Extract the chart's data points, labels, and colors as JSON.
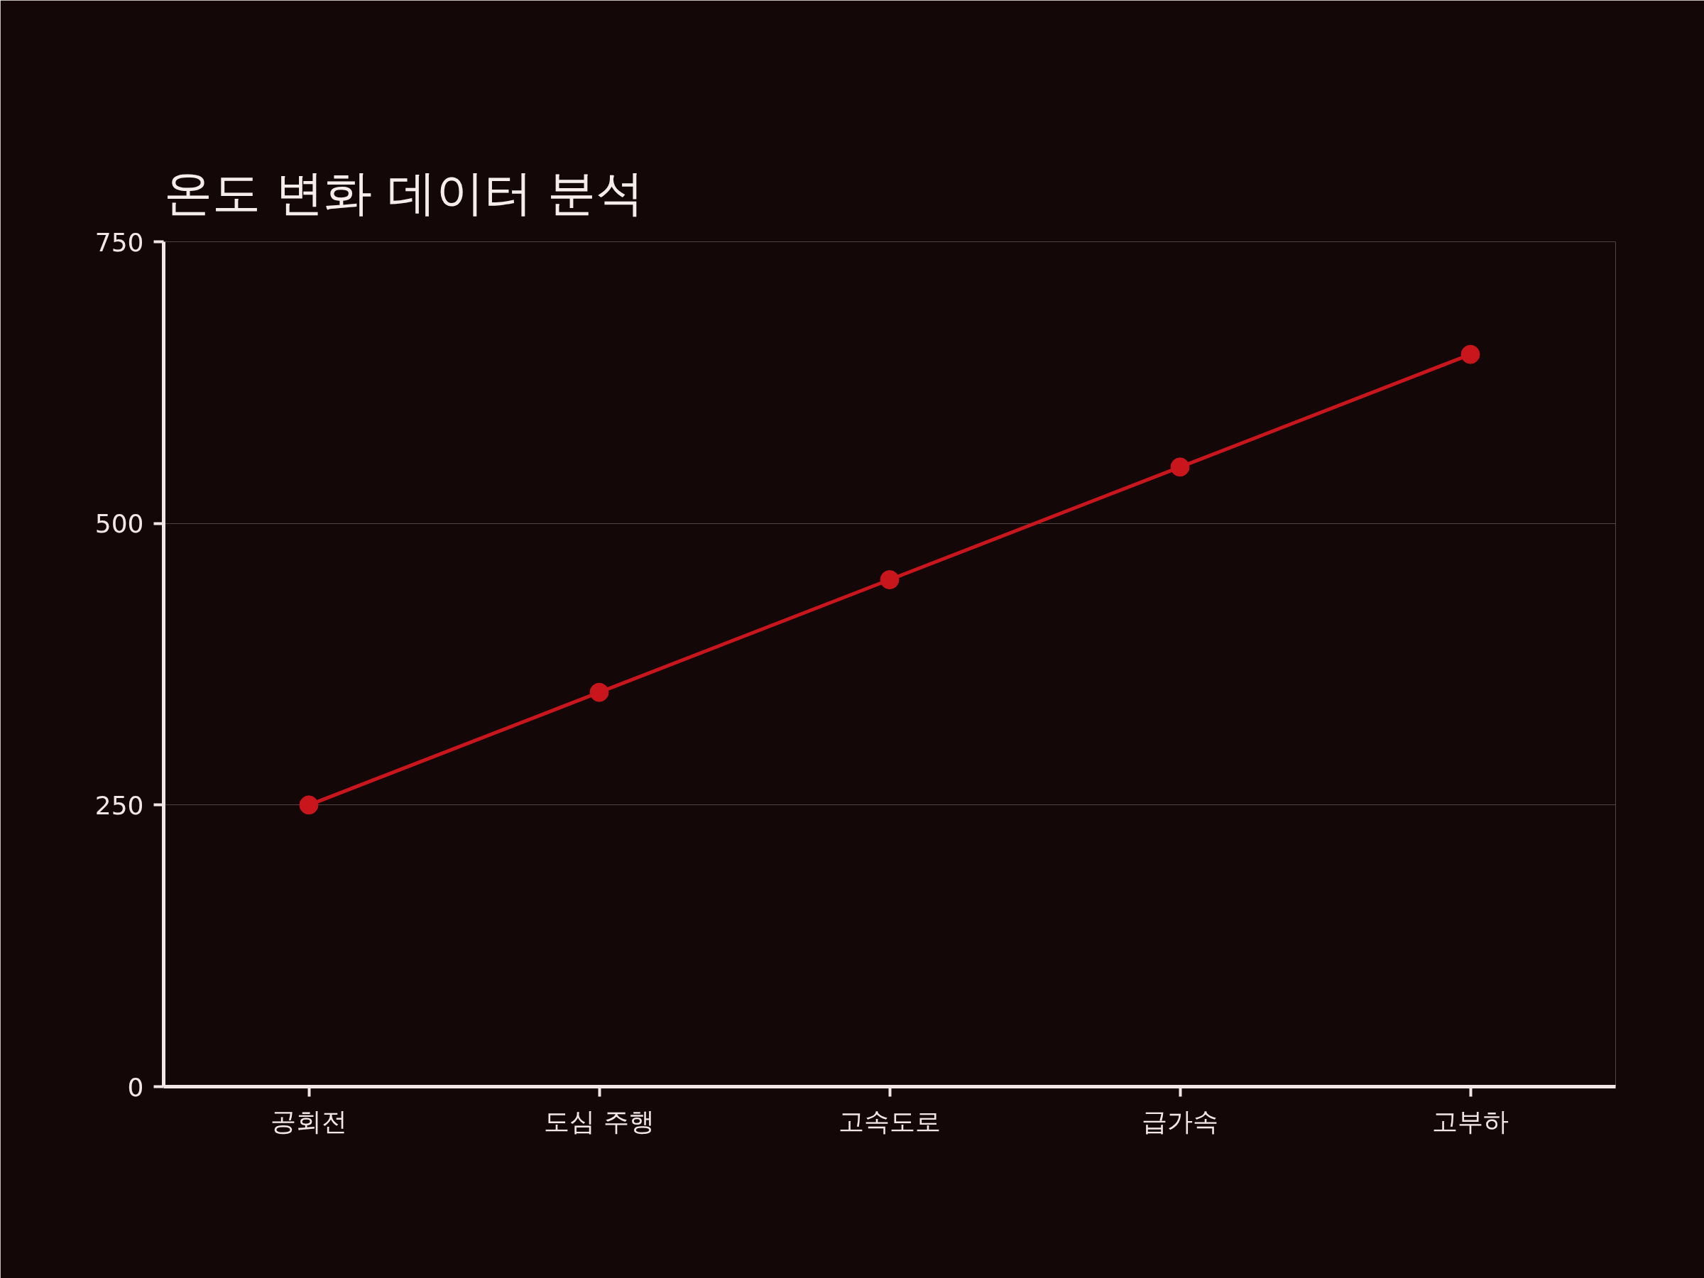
{
  "chart_data": {
    "type": "line",
    "title": "온도 변화 데이터 분석",
    "categories": [
      "공회전",
      "도심 주행",
      "고속도로",
      "급가속",
      "고부하"
    ],
    "series": [
      {
        "color": "#c8161c",
        "values": [
          250,
          350,
          450,
          550,
          650
        ]
      }
    ],
    "ylim": [
      0,
      750
    ],
    "yticks": [
      0,
      250,
      500,
      750
    ],
    "grid": "y",
    "marker": "circle",
    "line_style": "solid"
  }
}
